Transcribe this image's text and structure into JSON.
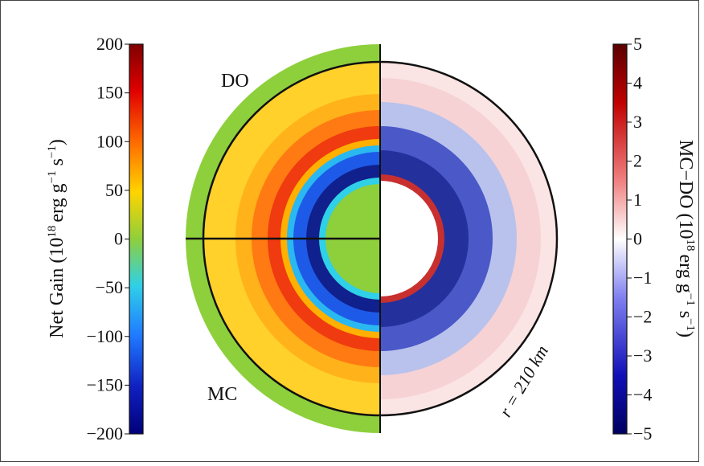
{
  "chart_data": [
    {
      "type": "heatmap",
      "panel": "left-half (DO top, MC bottom)",
      "colormap": "jet",
      "colorbar": {
        "label_prefix": "Net Gain (10",
        "label_exp": "18",
        "label_mid": "erg g",
        "label_exp2": "−1",
        "label_mid2": " s",
        "label_exp3": "−1",
        "label_suffix": ")",
        "range": [
          -200,
          200
        ],
        "ticks": [
          "200",
          "150",
          "100",
          "50",
          "0",
          "−50",
          "−100",
          "−150",
          "−200"
        ],
        "tick_values": [
          200,
          150,
          100,
          50,
          0,
          -50,
          -100,
          -150,
          -200
        ]
      },
      "labels": {
        "top": "DO",
        "bottom": "MC"
      },
      "bands": [
        {
          "r_km": [
            0,
            45
          ],
          "value": 0
        },
        {
          "r_km": [
            45,
            70
          ],
          "value": -150
        },
        {
          "r_km": [
            70,
            135
          ],
          "value": 120
        },
        {
          "r_km": [
            135,
            210
          ],
          "value": 65
        },
        {
          "r_km": [
            210,
            250
          ],
          "value": 0
        }
      ]
    },
    {
      "type": "heatmap",
      "panel": "right-half difference",
      "colormap": "seismic",
      "colorbar": {
        "label_prefix": "MC−DO (10",
        "label_exp": "18",
        "label_mid": "erg g",
        "label_exp2": "−1",
        "label_mid2": " s",
        "label_exp3": "−1",
        "label_suffix": ")",
        "range": [
          -5,
          5
        ],
        "ticks": [
          "5",
          "4",
          "3",
          "2",
          "1",
          "0",
          "−1",
          "−2",
          "−3",
          "−4",
          "−5"
        ],
        "tick_values": [
          5,
          4,
          3,
          2,
          1,
          0,
          -1,
          -2,
          -3,
          -4,
          -5
        ]
      },
      "annotation": "r = 210 km",
      "bands": [
        {
          "r_km": [
            0,
            45
          ],
          "value": 0
        },
        {
          "r_km": [
            45,
            150
          ],
          "value": -3
        },
        {
          "r_km": [
            150,
            210
          ],
          "value": 0.7
        }
      ]
    }
  ]
}
